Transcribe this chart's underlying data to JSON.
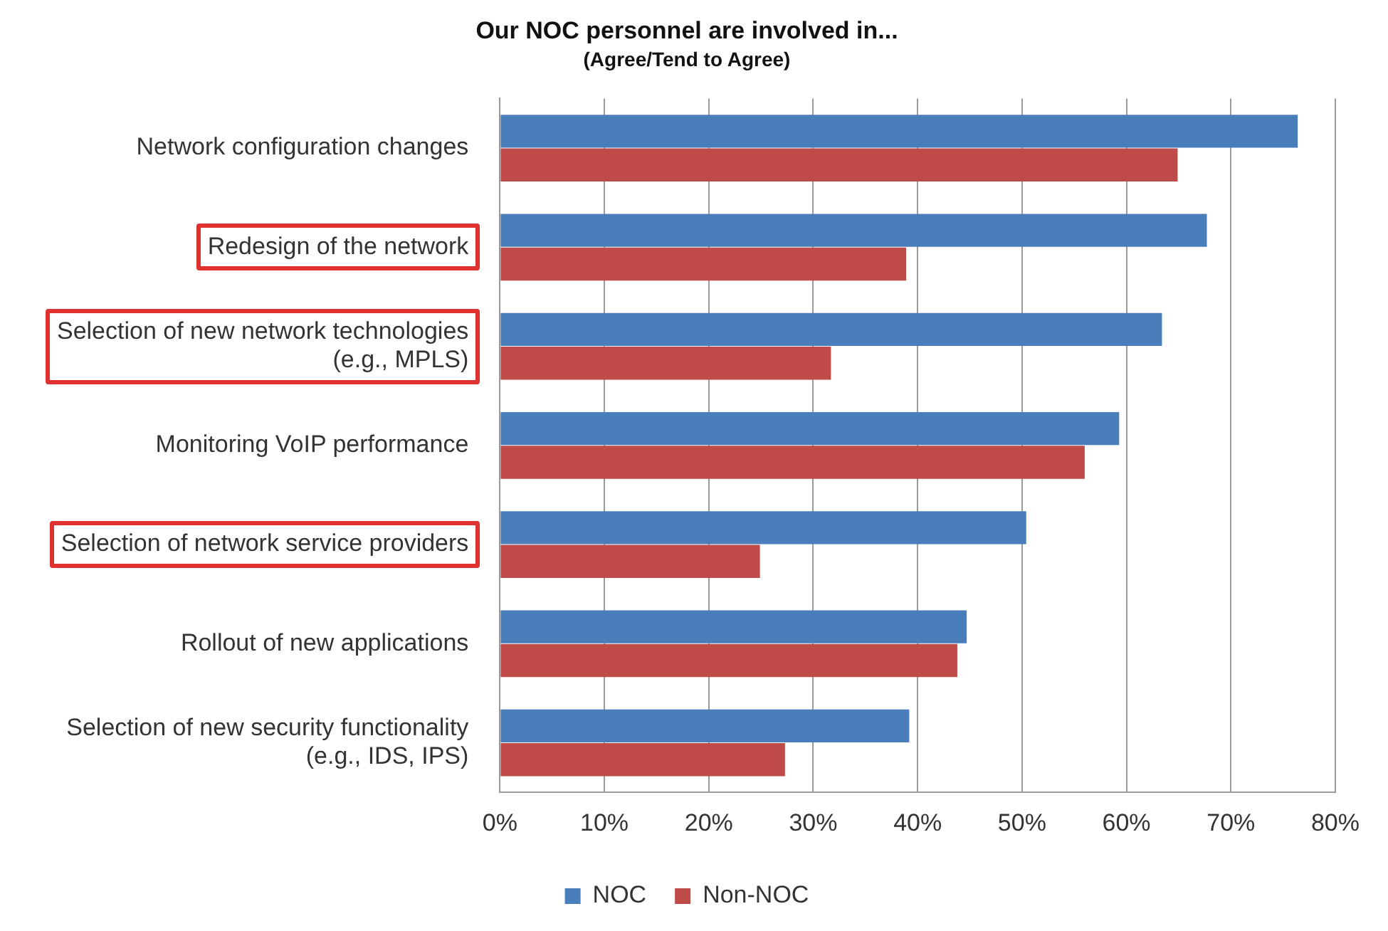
{
  "chart_data": {
    "type": "bar",
    "orientation": "horizontal",
    "title": "Our NOC personnel are involved in...",
    "subtitle": "(Agree/Tend to Agree)",
    "categories": [
      "Network configuration changes",
      "Redesign of the network",
      "Selection of new network technologies (e.g., MPLS)",
      "Monitoring VoIP performance",
      "Selection of network service providers",
      "Rollout of new applications",
      "Selection of new security functionality (e.g., IDS, IPS)"
    ],
    "series": [
      {
        "name": "NOC",
        "color": "#4a7ebb",
        "values": [
          76.4,
          67.7,
          63.4,
          59.3,
          50.4,
          44.7,
          39.2
        ]
      },
      {
        "name": "Non-NOC",
        "color": "#be4b48",
        "values": [
          64.9,
          38.9,
          31.7,
          56.0,
          24.9,
          43.8,
          27.3
        ]
      }
    ],
    "xlim": [
      0,
      80
    ],
    "xticks": [
      {
        "value": 0,
        "label": "0%"
      },
      {
        "value": 10,
        "label": "10%"
      },
      {
        "value": 20,
        "label": "20%"
      },
      {
        "value": 30,
        "label": "30%"
      },
      {
        "value": 40,
        "label": "40%"
      },
      {
        "value": 50,
        "label": "50%"
      },
      {
        "value": 60,
        "label": "60%"
      },
      {
        "value": 70,
        "label": "70%"
      },
      {
        "value": 80,
        "label": "80%"
      }
    ],
    "grid": "x",
    "legend": "bottom"
  }
}
